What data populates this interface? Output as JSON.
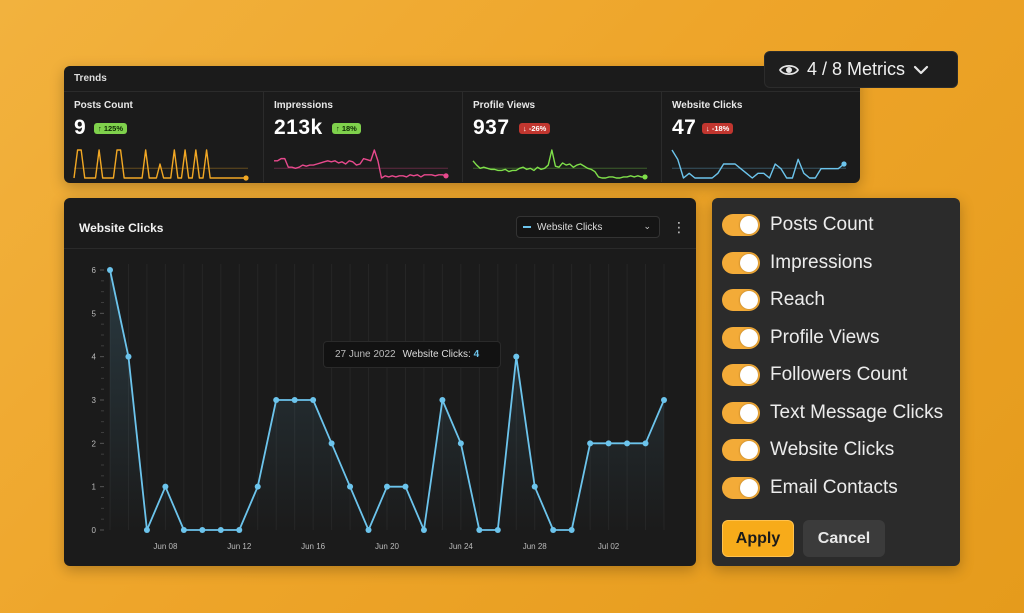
{
  "trends": {
    "title": "Trends",
    "cards": [
      {
        "label": "Posts Count",
        "value": "9",
        "change": "125%",
        "direction": "up",
        "color": "#f2a824",
        "spark": [
          0,
          2,
          2,
          0,
          0,
          0,
          0,
          2,
          0,
          0,
          0,
          0,
          2,
          2,
          0,
          0,
          0,
          0,
          0,
          0,
          2,
          0,
          0,
          0,
          1,
          0,
          0,
          0,
          2,
          0,
          0,
          2,
          0,
          0,
          2,
          0,
          0,
          2,
          0,
          0,
          0,
          0,
          0,
          0,
          0,
          0,
          0,
          0,
          0
        ]
      },
      {
        "label": "Impressions",
        "value": "213k",
        "change": "18%",
        "direction": "up",
        "color": "#e8498d",
        "spark": [
          1,
          1,
          1.2,
          1.2,
          0.4,
          0.4,
          0.3,
          0.4,
          0.6,
          0.5,
          0.6,
          0.6,
          0.7,
          0.8,
          0.9,
          1.0,
          0.9,
          1.0,
          0.8,
          0.9,
          0.7,
          1.0,
          0.9,
          0.6,
          0.7,
          1.2,
          1.1,
          1.0,
          2.0,
          1.0,
          -0.6,
          -0.4,
          -0.5,
          -0.4,
          -0.5,
          -0.4,
          -0.4,
          -0.5,
          -0.3,
          -0.4,
          -0.3,
          -0.5,
          -0.3,
          -0.3,
          -0.3,
          -0.4,
          -0.3,
          -0.3,
          -0.4
        ]
      },
      {
        "label": "Profile Views",
        "value": "937",
        "change": "-26%",
        "direction": "down",
        "color": "#7fe04a",
        "spark": [
          1.2,
          0.8,
          0.5,
          0.6,
          0.5,
          0.4,
          0.4,
          0.3,
          0.3,
          0.4,
          0.2,
          0.3,
          0.3,
          0.5,
          0.6,
          0.4,
          0.5,
          0.3,
          0.6,
          0.4,
          0.5,
          0.8,
          2.2,
          0.7,
          0.6,
          1.0,
          0.8,
          0.9,
          0.6,
          0.8,
          0.9,
          0.7,
          0.5,
          0.4,
          0.2,
          -0.3,
          -0.4,
          -0.4,
          -0.3,
          -0.3,
          -0.4,
          -0.4,
          -0.3,
          -0.3,
          -0.2,
          -0.3,
          -0.2,
          -0.3,
          -0.3
        ]
      },
      {
        "label": "Website Clicks",
        "value": "47",
        "change": "-18%",
        "direction": "down",
        "color": "#6cc4ec",
        "spark": [
          6,
          4,
          0,
          1,
          0,
          0,
          0,
          0,
          1,
          3,
          3,
          3,
          2,
          1,
          0,
          1,
          1,
          0,
          3,
          2,
          0,
          0,
          4,
          1,
          0,
          0,
          2,
          2,
          2,
          2,
          3
        ]
      }
    ]
  },
  "metrics_button": {
    "label": "4 / 8 Metrics",
    "icon": "eye-icon"
  },
  "chart_panel": {
    "title": "Website Clicks",
    "select_value": "Website Clicks",
    "tooltip": {
      "date": "27 June 2022",
      "label": "Website Clicks:",
      "value": "4"
    }
  },
  "chart_data": {
    "type": "line",
    "title": "Website Clicks",
    "x": [
      "Jun 05",
      "Jun 06",
      "Jun 07",
      "Jun 08",
      "Jun 09",
      "Jun 10",
      "Jun 11",
      "Jun 12",
      "Jun 13",
      "Jun 14",
      "Jun 15",
      "Jun 16",
      "Jun 17",
      "Jun 18",
      "Jun 19",
      "Jun 20",
      "Jun 21",
      "Jun 22",
      "Jun 23",
      "Jun 24",
      "Jun 25",
      "Jun 26",
      "Jun 27",
      "Jun 28",
      "Jun 29",
      "Jun 30",
      "Jul 01",
      "Jul 02",
      "Jul 03",
      "Jul 04",
      "Jul 05"
    ],
    "series": [
      {
        "name": "Website Clicks",
        "color": "#6cc4ec",
        "values": [
          6,
          4,
          0,
          1,
          0,
          0,
          0,
          0,
          1,
          3,
          3,
          3,
          2,
          1,
          0,
          1,
          1,
          0,
          3,
          2,
          0,
          0,
          4,
          1,
          0,
          0,
          2,
          2,
          2,
          2,
          3
        ]
      }
    ],
    "x_ticks": [
      "Jun 08",
      "Jun 12",
      "Jun 16",
      "Jun 20",
      "Jun 24",
      "Jun 28",
      "Jul 02"
    ],
    "y_ticks": [
      0,
      1,
      2,
      3,
      4,
      5,
      6
    ],
    "ylim": [
      0,
      6
    ],
    "grid": "vertical"
  },
  "toggles": {
    "items": [
      {
        "label": "Posts Count",
        "on": true
      },
      {
        "label": "Impressions",
        "on": true
      },
      {
        "label": "Reach",
        "on": true
      },
      {
        "label": "Profile Views",
        "on": true
      },
      {
        "label": "Followers Count",
        "on": true
      },
      {
        "label": "Text Message Clicks",
        "on": true
      },
      {
        "label": "Website Clicks",
        "on": true
      },
      {
        "label": "Email Contacts",
        "on": true
      }
    ],
    "apply_label": "Apply",
    "cancel_label": "Cancel"
  }
}
